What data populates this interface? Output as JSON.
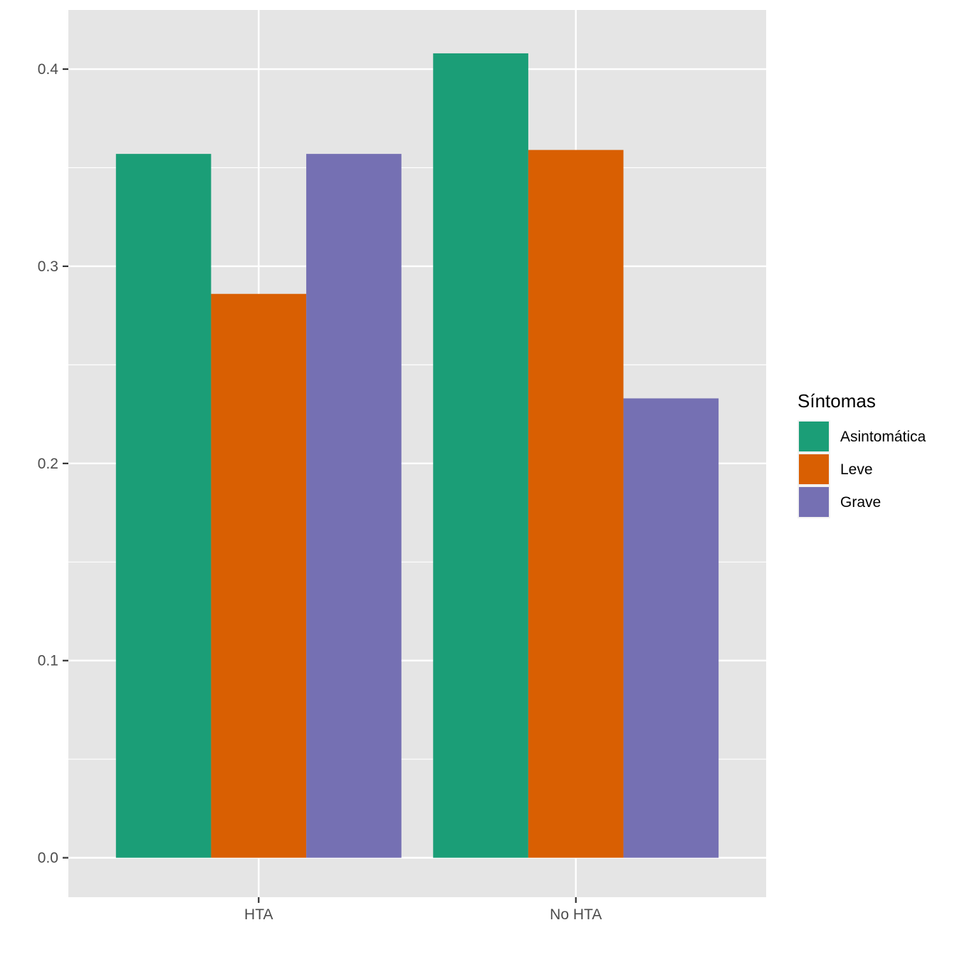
{
  "chart_data": {
    "type": "bar",
    "categories": [
      "HTA",
      "No HTA"
    ],
    "series": [
      {
        "name": "Asintomática",
        "color": "#1B9E77",
        "values": [
          0.357,
          0.408
        ]
      },
      {
        "name": "Leve",
        "color": "#D95F02",
        "values": [
          0.286,
          0.359
        ]
      },
      {
        "name": "Grave",
        "color": "#7570B3",
        "values": [
          0.357,
          0.233
        ]
      }
    ],
    "title": "",
    "xlabel": "",
    "ylabel": "",
    "ylim": [
      -0.02,
      0.43
    ],
    "yticks": [
      0.0,
      0.1,
      0.2,
      0.3,
      0.4
    ],
    "ytick_labels": [
      "0.0",
      "0.1",
      "0.2",
      "0.3",
      "0.4"
    ],
    "legend": {
      "title": "Síntomas",
      "position": "right"
    },
    "grid": true,
    "panel_background": "#E5E5E5",
    "grid_color": "#FFFFFF"
  }
}
